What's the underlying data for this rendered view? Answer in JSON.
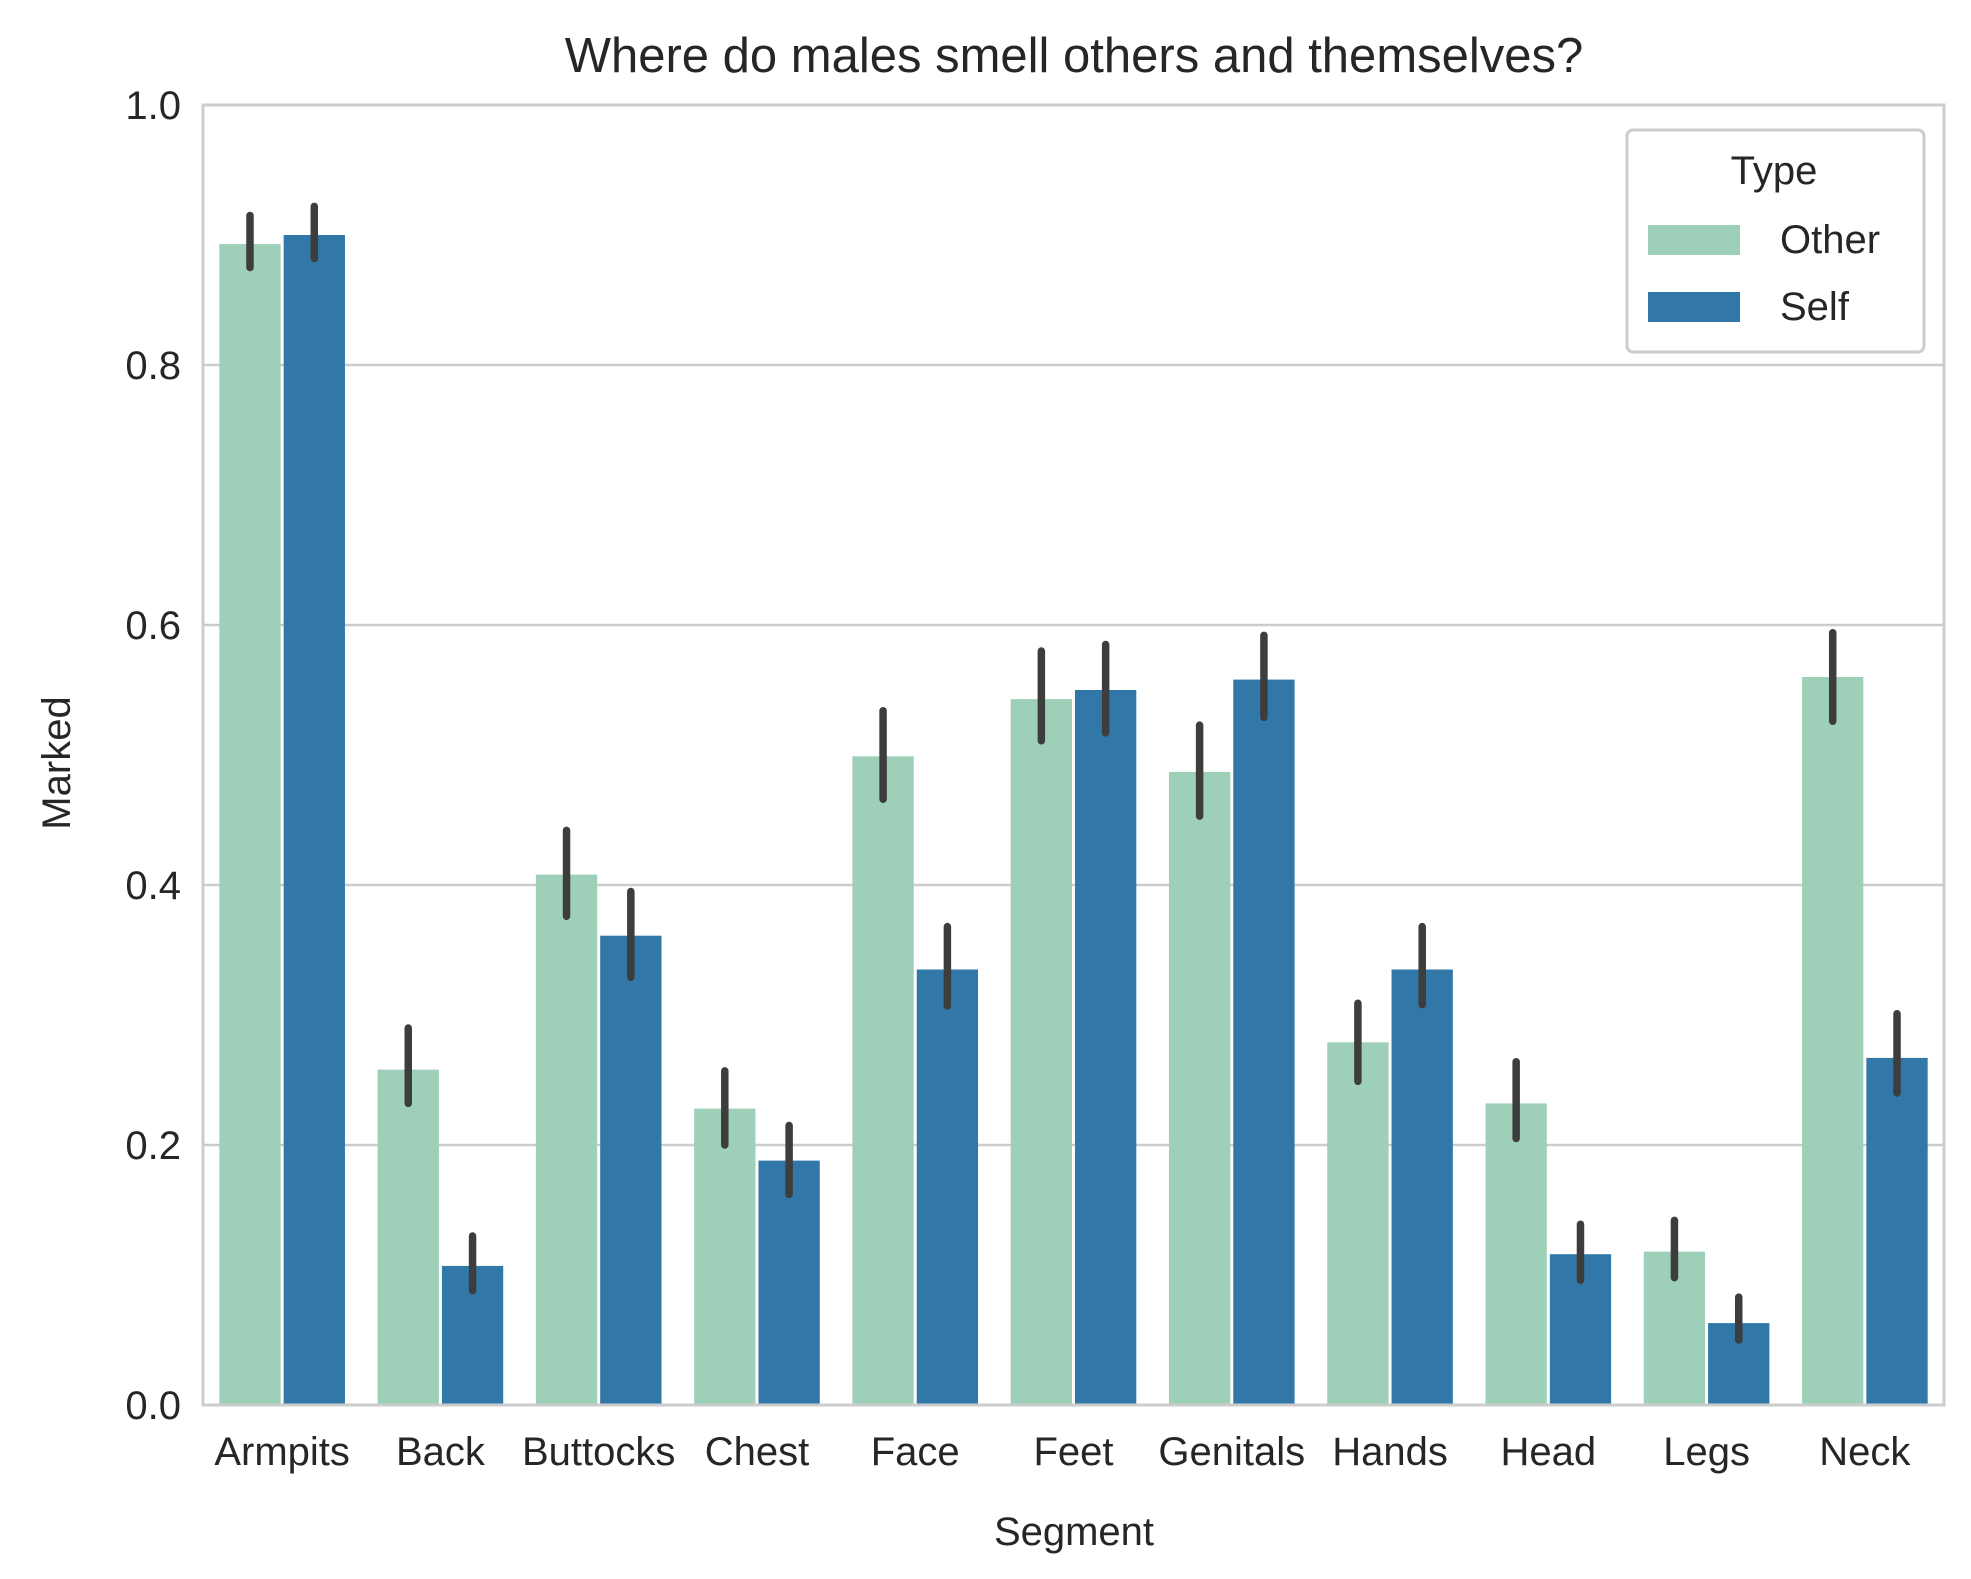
{
  "chart_data": {
    "type": "bar",
    "title": "Where do males smell others and themselves?",
    "xlabel": "Segment",
    "ylabel": "Marked",
    "ylim": [
      0,
      1.0
    ],
    "yticks": [
      "0.0",
      "0.2",
      "0.4",
      "0.6",
      "0.8",
      "1.0"
    ],
    "grid": "horizontal",
    "legend": {
      "title": "Type",
      "placement": "top-right"
    },
    "categories": [
      "Armpits",
      "Back",
      "Buttocks",
      "Chest",
      "Face",
      "Feet",
      "Genitals",
      "Hands",
      "Head",
      "Legs",
      "Neck"
    ],
    "series": [
      {
        "name": "Other",
        "color": "#9ecfb8",
        "values": [
          0.893,
          0.258,
          0.408,
          0.228,
          0.499,
          0.543,
          0.487,
          0.279,
          0.232,
          0.118,
          0.56
        ],
        "ci_low": [
          0.875,
          0.232,
          0.376,
          0.2,
          0.466,
          0.511,
          0.453,
          0.249,
          0.205,
          0.098,
          0.526
        ],
        "ci_high": [
          0.915,
          0.29,
          0.442,
          0.257,
          0.534,
          0.58,
          0.523,
          0.309,
          0.264,
          0.142,
          0.594
        ]
      },
      {
        "name": "Self",
        "color": "#3178a8",
        "values": [
          0.9,
          0.107,
          0.361,
          0.188,
          0.335,
          0.55,
          0.558,
          0.335,
          0.116,
          0.063,
          0.267
        ],
        "ci_low": [
          0.882,
          0.088,
          0.329,
          0.162,
          0.307,
          0.517,
          0.529,
          0.308,
          0.096,
          0.05,
          0.24
        ],
        "ci_high": [
          0.922,
          0.13,
          0.395,
          0.215,
          0.368,
          0.585,
          0.592,
          0.368,
          0.139,
          0.083,
          0.301
        ]
      }
    ],
    "errorbar_color": "#3d3d3d",
    "grid_color": "#cccccc",
    "spine_color": "#cccccc"
  }
}
